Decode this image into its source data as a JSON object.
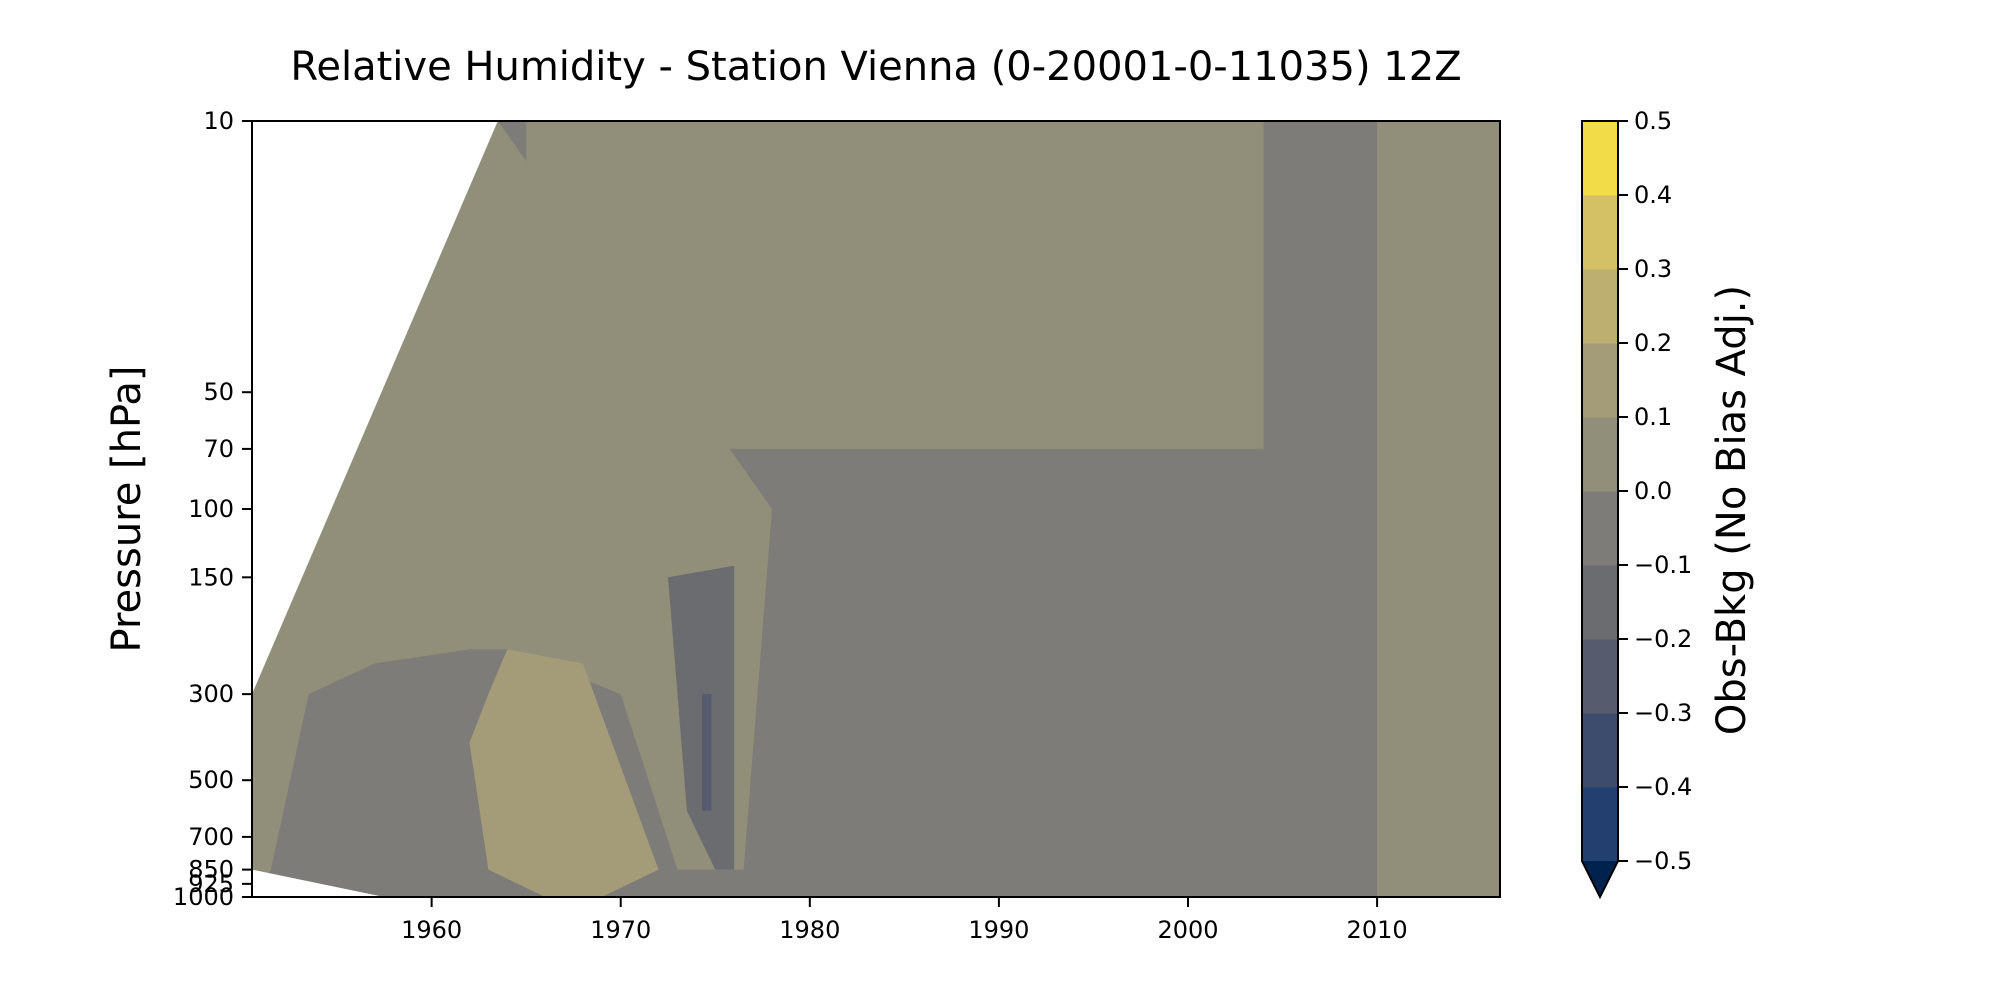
{
  "chart_data": {
    "type": "heatmap",
    "title": "Relative Humidity - Station Vienna (0-20001-0-11035) 12Z",
    "xlabel": "",
    "ylabel": "Pressure [hPa]",
    "x_range": [
      1950.5,
      2016.5
    ],
    "x_ticks": [
      1960,
      1970,
      1980,
      1990,
      2000,
      2010
    ],
    "y_scale": "log",
    "y_range": [
      10,
      1000
    ],
    "y_ticks": [
      10,
      50,
      70,
      100,
      150,
      300,
      500,
      700,
      850,
      925,
      1000
    ],
    "y_inverted": true,
    "colorbar": {
      "label": "Obs-Bkg (No Bias Adj.)",
      "ticks": [
        -0.5,
        -0.4,
        -0.3,
        -0.2,
        -0.1,
        0.0,
        0.1,
        0.2,
        0.3,
        0.4,
        0.5
      ],
      "tick_labels": [
        "−0.5",
        "−0.4",
        "−0.3",
        "−0.2",
        "−0.1",
        "0.0",
        "0.1",
        "0.2",
        "0.3",
        "0.4",
        "0.5"
      ],
      "extend": "min",
      "colors": [
        "#00224e",
        "#233f70",
        "#3d4b6d",
        "#565b6d",
        "#6b6c70",
        "#7d7c78",
        "#918e79",
        "#a49c78",
        "#bcaf6f",
        "#d4c165",
        "#f2dc47"
      ]
    },
    "regions": [
      {
        "value": -0.05,
        "x": [
          1950.5,
          2016.5,
          2016.5,
          1950.5
        ],
        "y": [
          10,
          10,
          1000,
          1000
        ]
      },
      {
        "value": 0.05,
        "x": [
          1950.5,
          1963.5,
          1978,
          1976.5,
          1973,
          1970,
          1964,
          1962,
          1957,
          1953.5,
          1951.5,
          1950.5
        ],
        "y": [
          300,
          10,
          100,
          850,
          850,
          300,
          230,
          230,
          250,
          300,
          850,
          1000
        ]
      },
      {
        "value": 0.15,
        "x": [
          1963,
          1964,
          1968,
          1972,
          1969,
          1966,
          1963,
          1962
        ],
        "y": [
          300,
          230,
          250,
          850,
          1000,
          1000,
          850,
          400
        ]
      },
      {
        "value": 0.05,
        "x": [
          1965,
          2004,
          2004,
          1965
        ],
        "y": [
          10,
          10,
          70,
          70
        ]
      },
      {
        "value": 0.05,
        "x": [
          2010,
          2016.5,
          2016.5,
          2010
        ],
        "y": [
          10,
          10,
          1000,
          1000
        ]
      },
      {
        "value": -0.15,
        "x": [
          1972.5,
          1976,
          1976,
          1975,
          1973.5,
          1973
        ],
        "y": [
          150,
          140,
          850,
          850,
          600,
          300
        ]
      },
      {
        "value": -0.25,
        "x": [
          1974.3,
          1974.8,
          1974.8,
          1974.3
        ],
        "y": [
          300,
          300,
          600,
          600
        ]
      }
    ]
  }
}
